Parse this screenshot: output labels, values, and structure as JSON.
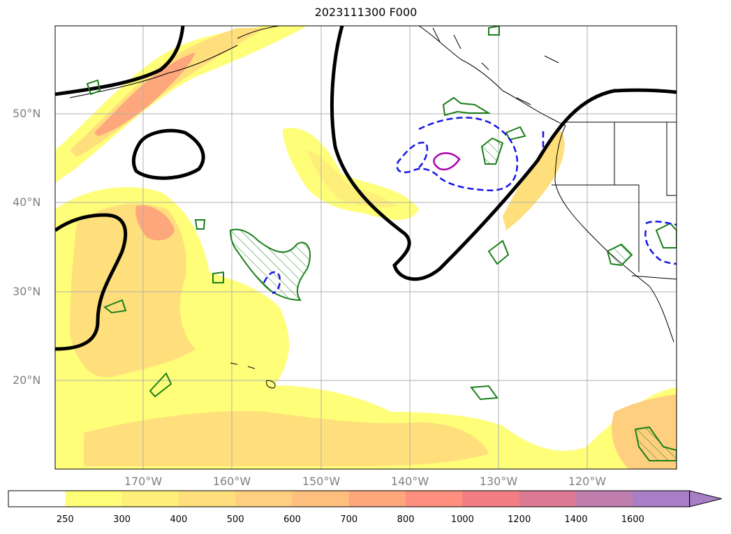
{
  "title": "2023111300 F000",
  "lat_labels": [
    "50°N",
    "40°N",
    "30°N",
    "20°N"
  ],
  "lon_labels": [
    "170°W",
    "160°W",
    "150°W",
    "140°W",
    "130°W",
    "120°W"
  ],
  "colorbar": {
    "levels": [
      "250",
      "300",
      "400",
      "500",
      "600",
      "700",
      "800",
      "1000",
      "1200",
      "1400",
      "1600"
    ],
    "colors": [
      "#ffffff",
      "#fefe78",
      "#feee7a",
      "#fedf7c",
      "#fecf7e",
      "#febf7e",
      "#fea67c",
      "#fe8e7e",
      "#f27e84",
      "#dc7a94",
      "#c07eae",
      "#a87ec6"
    ],
    "extend": "max"
  },
  "contour_colors": {
    "heavy": "#000000",
    "green": "#1a7f1a",
    "blue": "#1414e6",
    "magenta": "#b000b0",
    "coast": "#000000",
    "grid": "#b0b0b0"
  }
}
